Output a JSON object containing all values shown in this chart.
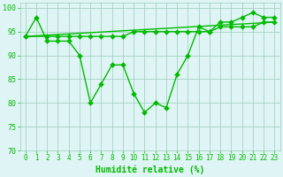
{
  "line1_x": [
    0,
    1,
    2,
    3,
    4,
    5,
    6,
    7,
    8,
    9,
    10,
    11,
    12,
    13,
    14,
    15,
    16,
    17,
    18,
    19,
    20,
    21,
    22,
    23
  ],
  "line1_y": [
    94,
    98,
    93,
    93,
    93,
    90,
    80,
    84,
    88,
    88,
    82,
    78,
    80,
    79,
    86,
    90,
    96,
    95,
    97,
    97,
    98,
    99,
    98,
    98
  ],
  "line2_x": [
    0,
    2,
    3,
    4,
    5,
    6,
    7,
    8,
    9,
    10,
    11,
    12,
    13,
    14,
    15,
    16,
    17,
    18,
    19,
    20,
    21,
    22,
    23
  ],
  "line2_y": [
    94,
    94,
    94,
    94,
    94,
    94,
    94,
    94,
    94,
    95,
    95,
    95,
    95,
    95,
    95,
    95,
    95,
    96,
    96,
    96,
    96,
    97,
    97
  ],
  "line3_x": [
    0,
    23
  ],
  "line3_y": [
    94,
    97
  ],
  "line_color": "#00bb00",
  "background_color": "#dff4f4",
  "grid_color": "#99ccbb",
  "xlabel": "Humidité relative (%)",
  "ylim": [
    70,
    101
  ],
  "xlim": [
    -0.5,
    23.5
  ],
  "yticks": [
    70,
    75,
    80,
    85,
    90,
    95,
    100
  ],
  "xticks": [
    0,
    1,
    2,
    3,
    4,
    5,
    6,
    7,
    8,
    9,
    10,
    11,
    12,
    13,
    14,
    15,
    16,
    17,
    18,
    19,
    20,
    21,
    22,
    23
  ],
  "marker_size": 3.0,
  "line_width": 1.0,
  "xlabel_fontsize": 7,
  "tick_fontsize": 5.5
}
